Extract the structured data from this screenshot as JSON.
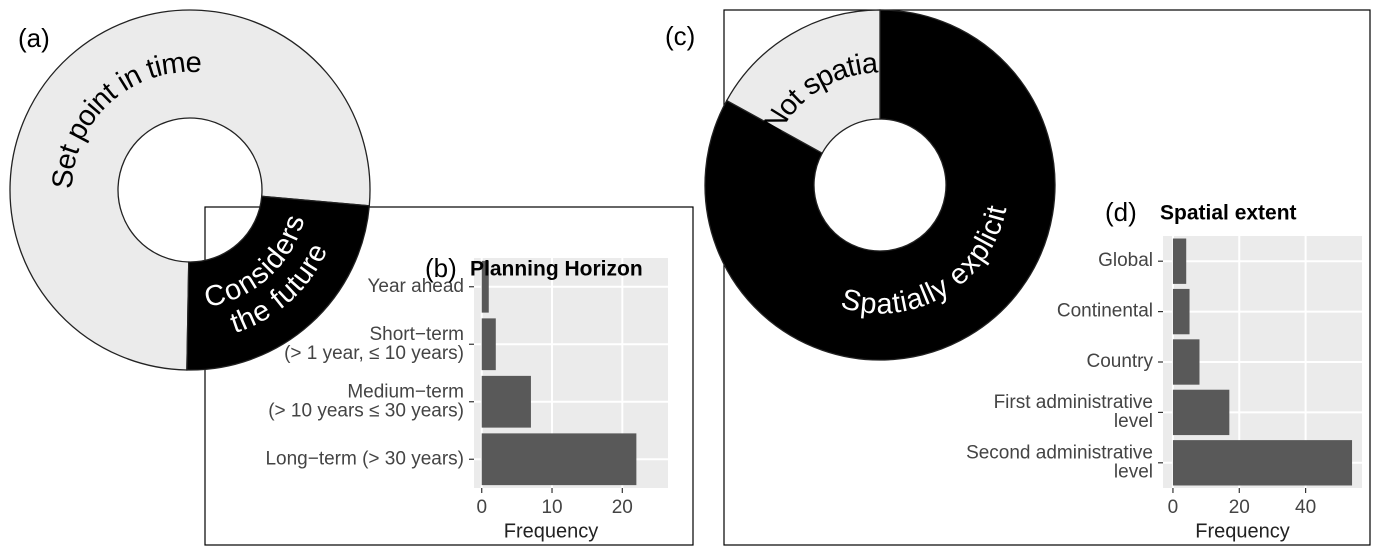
{
  "chart_data": [
    {
      "type": "pie",
      "label": "(a)",
      "categories": [
        "Set point in time",
        "Considers\nthe future"
      ],
      "values": [
        102,
        32
      ],
      "colors": [
        "#ebebeb",
        "#000000"
      ],
      "text_colors": [
        "#000000",
        "#ffffff"
      ]
    },
    {
      "type": "bar",
      "label": "(b)",
      "title": "Planning Horizon",
      "categories": [
        "Year ahead",
        "Short−term\n(> 1 year, ≤ 10 years)",
        "Medium−term\n(> 10 years ≤ 30 years)",
        "Long−term (> 30 years)"
      ],
      "values": [
        1,
        2,
        7,
        22
      ],
      "color": "#595959",
      "xlim": [
        -1.1,
        26.5
      ],
      "xticks": [
        0,
        10,
        20
      ],
      "xlabel": "Frequency",
      "grid": true
    },
    {
      "type": "pie",
      "label": "(c)",
      "categories": [
        "Spatially explicit",
        "Not spatial"
      ],
      "values": [
        88,
        18
      ],
      "colors": [
        "#000000",
        "#ebebeb"
      ],
      "text_colors": [
        "#ffffff",
        "#000000"
      ]
    },
    {
      "type": "bar",
      "label": "(d)",
      "title": "Spatial extent",
      "categories": [
        "Global",
        "Continental",
        "Country",
        "First administrative\nlevel",
        "Second administrative\nlevel"
      ],
      "values": [
        4,
        5,
        8,
        17,
        54
      ],
      "color": "#595959",
      "xlim": [
        -3,
        57
      ],
      "xticks": [
        0,
        20,
        40
      ],
      "xlabel": "Frequency",
      "grid": true
    }
  ]
}
